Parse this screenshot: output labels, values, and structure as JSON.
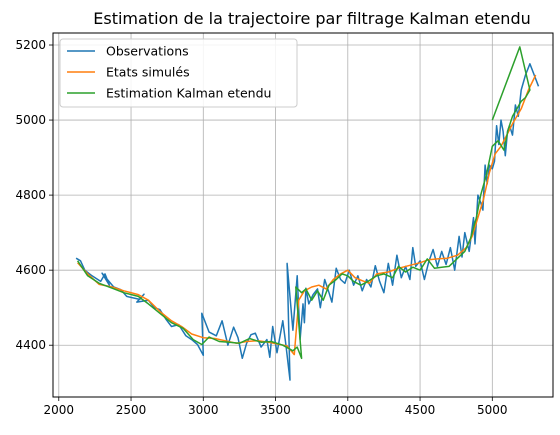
{
  "chart_data": {
    "type": "line",
    "title": "Estimation de la trajectoire par filtrage Kalman etendu",
    "xlabel": "",
    "ylabel": "",
    "xlim": [
      1960,
      5420
    ],
    "ylim": [
      4262,
      5232
    ],
    "grid": true,
    "legend_position": "top-left",
    "x_ticks": [
      2000,
      2500,
      3000,
      3500,
      4000,
      4500,
      5000
    ],
    "y_ticks": [
      4400,
      4600,
      4800,
      5000,
      5200
    ],
    "series": [
      {
        "name": "Observations",
        "color": "#1f77b4",
        "points": [
          [
            2120,
            4632
          ],
          [
            2150,
            4625
          ],
          [
            2180,
            4600
          ],
          [
            2230,
            4585
          ],
          [
            2290,
            4570
          ],
          [
            2320,
            4590
          ],
          [
            2350,
            4560
          ],
          [
            2300,
            4592
          ],
          [
            2380,
            4555
          ],
          [
            2430,
            4548
          ],
          [
            2470,
            4530
          ],
          [
            2560,
            4522
          ],
          [
            2590,
            4536
          ],
          [
            2540,
            4515
          ],
          [
            2620,
            4520
          ],
          [
            2660,
            4500
          ],
          [
            2700,
            4495
          ],
          [
            2740,
            4470
          ],
          [
            2780,
            4450
          ],
          [
            2830,
            4455
          ],
          [
            2880,
            4425
          ],
          [
            2920,
            4415
          ],
          [
            2960,
            4402
          ],
          [
            3000,
            4373
          ],
          [
            2990,
            4485
          ],
          [
            3040,
            4435
          ],
          [
            3090,
            4425
          ],
          [
            3130,
            4465
          ],
          [
            3170,
            4400
          ],
          [
            3210,
            4448
          ],
          [
            3240,
            4420
          ],
          [
            3270,
            4365
          ],
          [
            3300,
            4405
          ],
          [
            3330,
            4428
          ],
          [
            3360,
            4432
          ],
          [
            3400,
            4395
          ],
          [
            3440,
            4415
          ],
          [
            3460,
            4368
          ],
          [
            3480,
            4450
          ],
          [
            3510,
            4380
          ],
          [
            3550,
            4465
          ],
          [
            3570,
            4405
          ],
          [
            3600,
            4307
          ],
          [
            3580,
            4618
          ],
          [
            3620,
            4440
          ],
          [
            3650,
            4585
          ],
          [
            3670,
            4415
          ],
          [
            3690,
            4510
          ],
          [
            3700,
            4460
          ],
          [
            3710,
            4552
          ],
          [
            3730,
            4510
          ],
          [
            3760,
            4535
          ],
          [
            3790,
            4550
          ],
          [
            3810,
            4500
          ],
          [
            3840,
            4575
          ],
          [
            3870,
            4540
          ],
          [
            3890,
            4515
          ],
          [
            3920,
            4605
          ],
          [
            3950,
            4575
          ],
          [
            3980,
            4565
          ],
          [
            4010,
            4600
          ],
          [
            4040,
            4560
          ],
          [
            4070,
            4585
          ],
          [
            4100,
            4545
          ],
          [
            4130,
            4575
          ],
          [
            4160,
            4555
          ],
          [
            4190,
            4612
          ],
          [
            4220,
            4570
          ],
          [
            4250,
            4540
          ],
          [
            4280,
            4618
          ],
          [
            4310,
            4560
          ],
          [
            4340,
            4640
          ],
          [
            4370,
            4580
          ],
          [
            4400,
            4610
          ],
          [
            4430,
            4575
          ],
          [
            4450,
            4660
          ],
          [
            4470,
            4610
          ],
          [
            4500,
            4625
          ],
          [
            4530,
            4575
          ],
          [
            4560,
            4622
          ],
          [
            4590,
            4655
          ],
          [
            4620,
            4610
          ],
          [
            4650,
            4650
          ],
          [
            4680,
            4615
          ],
          [
            4710,
            4660
          ],
          [
            4740,
            4600
          ],
          [
            4770,
            4690
          ],
          [
            4790,
            4635
          ],
          [
            4810,
            4700
          ],
          [
            4840,
            4650
          ],
          [
            4870,
            4740
          ],
          [
            4880,
            4670
          ],
          [
            4900,
            4800
          ],
          [
            4920,
            4780
          ],
          [
            4935,
            4760
          ],
          [
            4950,
            4880
          ],
          [
            4965,
            4830
          ],
          [
            4980,
            4880
          ],
          [
            5000,
            4870
          ],
          [
            5015,
            4890
          ],
          [
            5030,
            4985
          ],
          [
            5045,
            4935
          ],
          [
            5060,
            5000
          ],
          [
            5075,
            4970
          ],
          [
            5090,
            4905
          ],
          [
            5105,
            4970
          ],
          [
            5120,
            4985
          ],
          [
            5140,
            4960
          ],
          [
            5160,
            5040
          ],
          [
            5180,
            5010
          ],
          [
            5200,
            5080
          ],
          [
            5230,
            5120
          ],
          [
            5260,
            5150
          ],
          [
            5290,
            5120
          ],
          [
            5320,
            5090
          ]
        ]
      },
      {
        "name": "Etats simulés",
        "color": "#ff7f0e",
        "points": [
          [
            2130,
            4620
          ],
          [
            2200,
            4590
          ],
          [
            2280,
            4562
          ],
          [
            2370,
            4555
          ],
          [
            2450,
            4545
          ],
          [
            2550,
            4535
          ],
          [
            2620,
            4520
          ],
          [
            2700,
            4490
          ],
          [
            2780,
            4465
          ],
          [
            2850,
            4450
          ],
          [
            2920,
            4430
          ],
          [
            3000,
            4420
          ],
          [
            3080,
            4418
          ],
          [
            3150,
            4412
          ],
          [
            3230,
            4405
          ],
          [
            3300,
            4410
          ],
          [
            3380,
            4412
          ],
          [
            3450,
            4408
          ],
          [
            3530,
            4402
          ],
          [
            3580,
            4398
          ],
          [
            3630,
            4375
          ],
          [
            3660,
            4520
          ],
          [
            3700,
            4545
          ],
          [
            3750,
            4555
          ],
          [
            3800,
            4560
          ],
          [
            3850,
            4550
          ],
          [
            3900,
            4575
          ],
          [
            3950,
            4590
          ],
          [
            4000,
            4600
          ],
          [
            4050,
            4580
          ],
          [
            4100,
            4572
          ],
          [
            4150,
            4565
          ],
          [
            4200,
            4590
          ],
          [
            4280,
            4595
          ],
          [
            4350,
            4605
          ],
          [
            4420,
            4612
          ],
          [
            4500,
            4620
          ],
          [
            4560,
            4628
          ],
          [
            4620,
            4630
          ],
          [
            4690,
            4632
          ],
          [
            4760,
            4640
          ],
          [
            4820,
            4660
          ],
          [
            4860,
            4690
          ],
          [
            4900,
            4740
          ],
          [
            4940,
            4790
          ],
          [
            4980,
            4860
          ],
          [
            5020,
            4910
          ],
          [
            5060,
            4930
          ],
          [
            5100,
            4960
          ],
          [
            5140,
            4990
          ],
          [
            5200,
            5030
          ],
          [
            5250,
            5080
          ],
          [
            5300,
            5120
          ]
        ]
      },
      {
        "name": "Estimation Kalman etendu",
        "color": "#2ca02c",
        "points": [
          [
            2130,
            4625
          ],
          [
            2200,
            4585
          ],
          [
            2280,
            4565
          ],
          [
            2370,
            4552
          ],
          [
            2450,
            4540
          ],
          [
            2550,
            4530
          ],
          [
            2620,
            4510
          ],
          [
            2700,
            4485
          ],
          [
            2780,
            4460
          ],
          [
            2860,
            4445
          ],
          [
            2930,
            4415
          ],
          [
            2990,
            4402
          ],
          [
            3040,
            4422
          ],
          [
            3110,
            4410
          ],
          [
            3180,
            4408
          ],
          [
            3250,
            4405
          ],
          [
            3320,
            4418
          ],
          [
            3400,
            4408
          ],
          [
            3470,
            4410
          ],
          [
            3550,
            4400
          ],
          [
            3620,
            4385
          ],
          [
            3650,
            4395
          ],
          [
            3680,
            4365
          ],
          [
            3640,
            4555
          ],
          [
            3680,
            4540
          ],
          [
            3710,
            4550
          ],
          [
            3750,
            4520
          ],
          [
            3790,
            4545
          ],
          [
            3830,
            4520
          ],
          [
            3870,
            4560
          ],
          [
            3920,
            4575
          ],
          [
            3960,
            4590
          ],
          [
            4000,
            4585
          ],
          [
            4040,
            4570
          ],
          [
            4090,
            4560
          ],
          [
            4140,
            4570
          ],
          [
            4200,
            4585
          ],
          [
            4250,
            4590
          ],
          [
            4310,
            4580
          ],
          [
            4350,
            4610
          ],
          [
            4400,
            4595
          ],
          [
            4450,
            4608
          ],
          [
            4500,
            4600
          ],
          [
            4550,
            4630
          ],
          [
            4600,
            4605
          ],
          [
            4650,
            4608
          ],
          [
            4700,
            4610
          ],
          [
            4760,
            4632
          ],
          [
            4810,
            4650
          ],
          [
            4850,
            4685
          ],
          [
            4890,
            4740
          ],
          [
            4920,
            4800
          ],
          [
            4960,
            4855
          ],
          [
            5000,
            4930
          ],
          [
            5040,
            4945
          ],
          [
            5080,
            4920
          ],
          [
            5110,
            4975
          ],
          [
            5140,
            5010
          ],
          [
            5170,
            5030
          ],
          [
            5200,
            5050
          ],
          [
            5230,
            5060
          ],
          [
            5260,
            5080
          ],
          [
            5190,
            5195
          ],
          [
            5000,
            5000
          ]
        ]
      }
    ]
  }
}
